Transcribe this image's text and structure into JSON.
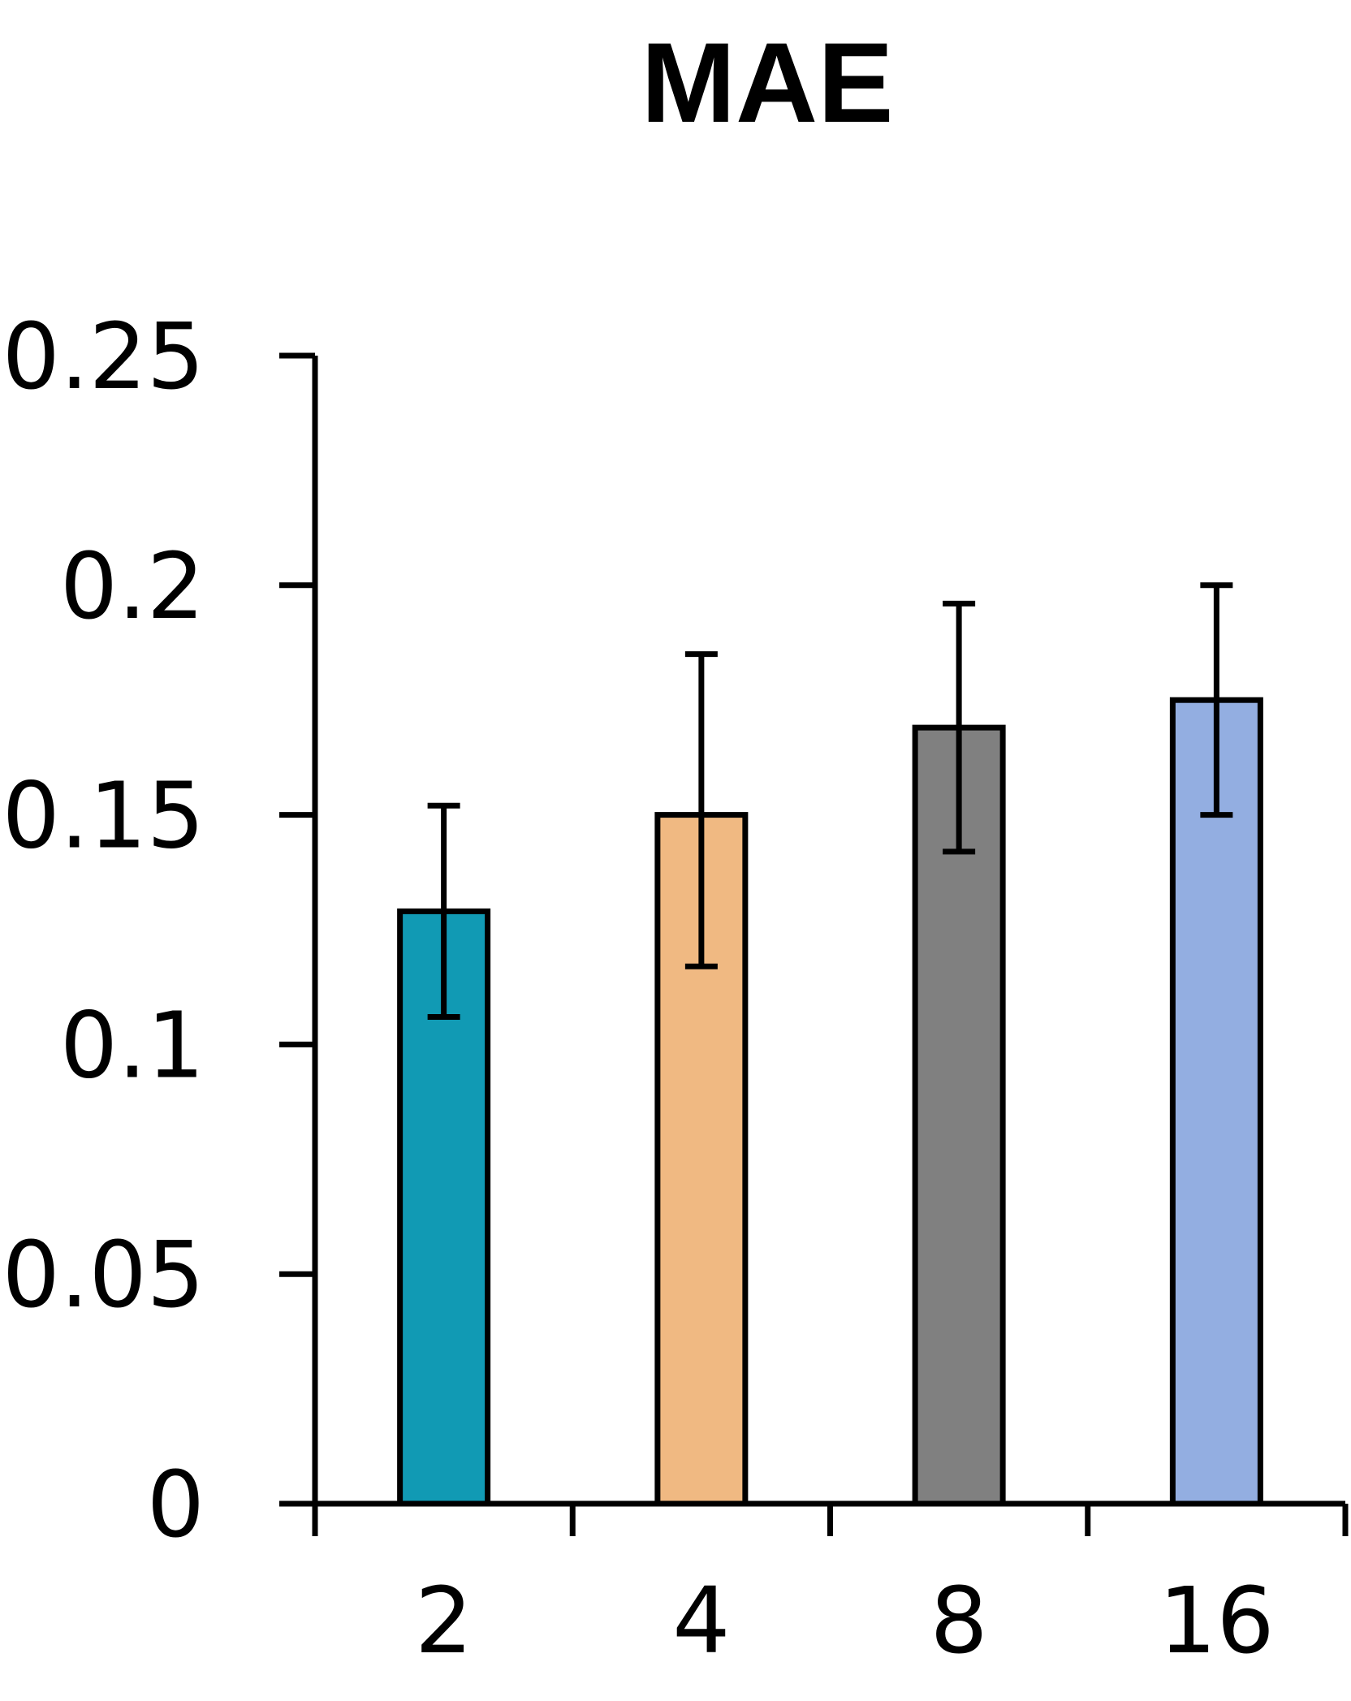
{
  "chart_data": {
    "type": "bar",
    "title": "MAE",
    "xlabel": "",
    "ylabel": "",
    "categories": [
      "2",
      "4",
      "8",
      "16"
    ],
    "values": [
      0.129,
      0.15,
      0.169,
      0.175
    ],
    "error_low": [
      0.106,
      0.117,
      0.142,
      0.15
    ],
    "error_high": [
      0.152,
      0.185,
      0.196,
      0.2
    ],
    "ylim": [
      0,
      0.25
    ],
    "yticks": [
      0,
      0.05,
      0.1,
      0.15,
      0.2,
      0.25
    ],
    "ytick_labels": [
      "0",
      "0.05",
      "0.1",
      "0.15",
      "0.2",
      "0.25"
    ],
    "grid": false,
    "legend": "none",
    "colors": [
      "#119AB4",
      "#F0B982",
      "#808080",
      "#93AEE1"
    ],
    "axis_color": "#000000"
  }
}
